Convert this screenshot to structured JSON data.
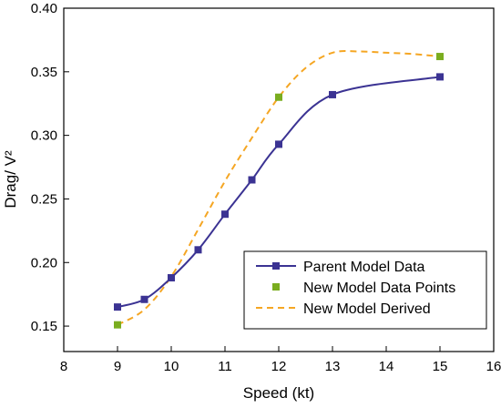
{
  "chart_data": {
    "type": "line",
    "xlabel": "Speed (kt)",
    "ylabel": "Drag/ V²",
    "xlim": [
      8,
      16
    ],
    "ylim": [
      0.13,
      0.4
    ],
    "xticks": [
      "8",
      "9",
      "10",
      "11",
      "12",
      "13",
      "14",
      "15",
      "16"
    ],
    "yticks": [
      "0.15",
      "0.20",
      "0.25",
      "0.30",
      "0.35",
      "0.40"
    ],
    "legend_position": "bottom-right",
    "series": [
      {
        "name": "Parent Model Data",
        "style": "solid line with square markers",
        "color": "#3b3393",
        "x": [
          9,
          9.5,
          10,
          10.5,
          11,
          11.5,
          12,
          13,
          15
        ],
        "y": [
          0.165,
          0.171,
          0.188,
          0.21,
          0.238,
          0.265,
          0.293,
          0.332,
          0.346
        ]
      },
      {
        "name": "New Model Data Points",
        "style": "square markers",
        "color": "#7aad1f",
        "x": [
          9,
          12,
          15
        ],
        "y": [
          0.151,
          0.33,
          0.362
        ]
      },
      {
        "name": "New Model Derived",
        "style": "dashed line",
        "color": "#f5a623",
        "x": [
          9,
          9.5,
          10,
          10.5,
          11,
          11.5,
          12,
          12.5,
          13,
          13.5,
          14,
          14.5,
          15
        ],
        "y": [
          0.151,
          0.163,
          0.189,
          0.226,
          0.264,
          0.298,
          0.33,
          0.353,
          0.365,
          0.366,
          0.365,
          0.364,
          0.362
        ]
      }
    ]
  }
}
